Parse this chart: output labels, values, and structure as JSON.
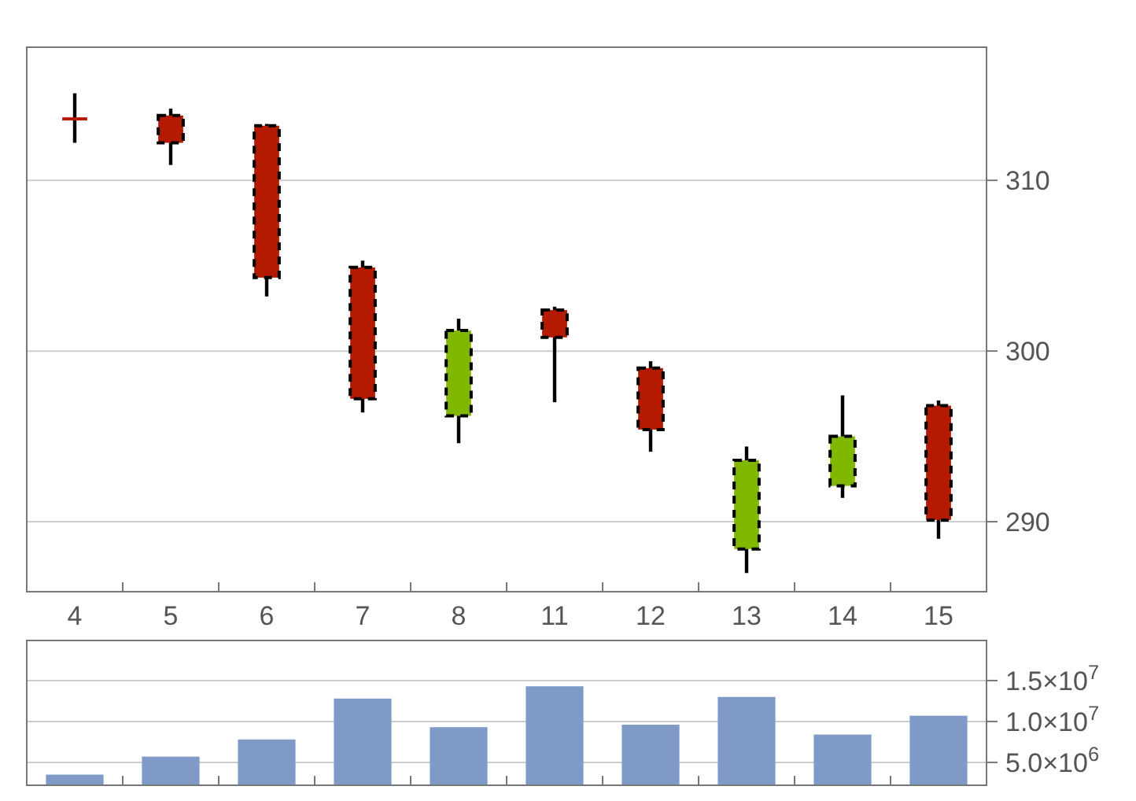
{
  "chart_data": [
    {
      "type": "candlestick",
      "categories": [
        "4",
        "5",
        "6",
        "7",
        "8",
        "11",
        "12",
        "13",
        "14",
        "15"
      ],
      "ohlc": [
        [
          313.6,
          315.1,
          312.2,
          313.6
        ],
        [
          313.8,
          314.2,
          310.9,
          312.2
        ],
        [
          313.2,
          313.3,
          303.2,
          304.3
        ],
        [
          304.9,
          305.3,
          296.4,
          297.2
        ],
        [
          296.2,
          301.9,
          294.6,
          301.2
        ],
        [
          302.4,
          302.6,
          297.0,
          300.8
        ],
        [
          299.0,
          299.4,
          294.1,
          295.4
        ],
        [
          288.4,
          294.4,
          287.0,
          293.6
        ],
        [
          292.1,
          297.4,
          291.4,
          295.0
        ],
        [
          296.8,
          297.1,
          289.0,
          290.1
        ]
      ],
      "colors": [
        "#b41a00",
        "#b41a00",
        "#b41a00",
        "#b41a00",
        "#80b800",
        "#b41a00",
        "#b41a00",
        "#80b800",
        "#80b800",
        "#b41a00"
      ],
      "ylim": [
        285.9,
        317.8
      ],
      "yticks": [
        290,
        300,
        310
      ],
      "grid": "y"
    },
    {
      "type": "bar",
      "categories": [
        null,
        null,
        null,
        null,
        null,
        null,
        null,
        null,
        null,
        null
      ],
      "values": [
        3500000,
        5700000,
        7800000,
        12800000,
        9300000,
        14300000,
        9600000,
        13000000,
        8400000,
        10700000
      ],
      "color": "#7f9ac6",
      "ylim": [
        2200000,
        19900000
      ],
      "yticks": [
        {
          "value": 5000000,
          "label": "5.0×10$^{6}$"
        },
        {
          "value": 10000000,
          "label": "1.0×10$^{7}$"
        },
        {
          "value": 15000000,
          "label": "1.5×10$^{7}$"
        }
      ],
      "grid": "y",
      "tick_labels": "y"
    }
  ]
}
